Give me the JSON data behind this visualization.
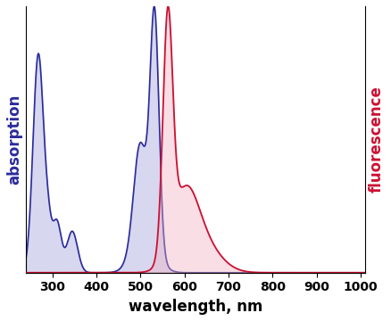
{
  "xlabel": "wavelength, nm",
  "ylabel_left": "absorption",
  "ylabel_right": "fluorescence",
  "ylabel_left_color": "#2b2b9b",
  "ylabel_right_color": "#cc1133",
  "absorption_line_color": "#2b2b9b",
  "absorption_fill_color": "#b0b0e0",
  "fluorescence_line_color": "#cc1133",
  "fluorescence_fill_color": "#f0b0c0",
  "xlim": [
    240,
    1010
  ],
  "xticks": [
    300,
    400,
    500,
    600,
    700,
    800,
    900,
    1000
  ],
  "background_color": "#ffffff",
  "xlabel_fontsize": 12,
  "ylabel_fontsize": 12
}
